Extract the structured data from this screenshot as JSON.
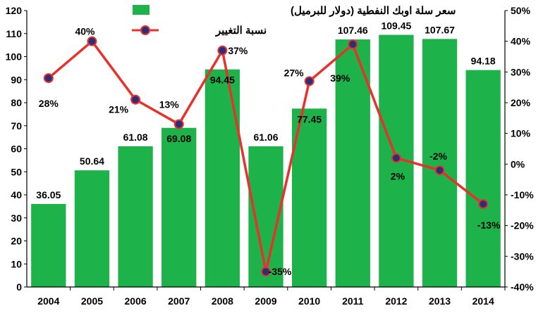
{
  "chart_data": {
    "type": "bar",
    "categories": [
      "2004",
      "2005",
      "2006",
      "2007",
      "2008",
      "2009",
      "2010",
      "2011",
      "2012",
      "2013",
      "2014"
    ],
    "series": [
      {
        "name": "سعر سلة اوبك النفطية (دولار للبرميل)",
        "type": "bar",
        "axis": "left",
        "color": "#1db34a",
        "values": [
          36.05,
          50.64,
          61.08,
          69.08,
          94.45,
          61.06,
          77.45,
          107.46,
          109.45,
          107.67,
          94.18
        ],
        "labels": [
          "36.05",
          "50.64",
          "61.08",
          "69.08",
          "94.45",
          "61.06",
          "77.45",
          "107.46",
          "109.45",
          "107.67",
          "94.18"
        ]
      },
      {
        "name": "نسبة التغيير",
        "type": "line",
        "axis": "right",
        "color": "#e8312a",
        "marker_color": "#2b2f7a",
        "values": [
          28,
          40,
          21,
          13,
          37,
          -35,
          27,
          39,
          2,
          -2,
          -13
        ],
        "labels": [
          "28%",
          "40%",
          "21%",
          "13%",
          "37%",
          "-35%",
          "27%",
          "39%",
          "2%",
          "-2%",
          "-13%"
        ]
      }
    ],
    "left_axis": {
      "min": 0,
      "max": 120,
      "ticks": [
        "0",
        "10",
        "20",
        "30",
        "40",
        "50",
        "60",
        "70",
        "80",
        "90",
        "100",
        "110",
        "120"
      ]
    },
    "right_axis": {
      "min": -40,
      "max": 50,
      "ticks": [
        "-40%",
        "-30%",
        "-20%",
        "-10%",
        "0%",
        "10%",
        "20%",
        "30%",
        "40%",
        "50%"
      ]
    },
    "legend": {
      "position": "top"
    },
    "grid": false
  }
}
